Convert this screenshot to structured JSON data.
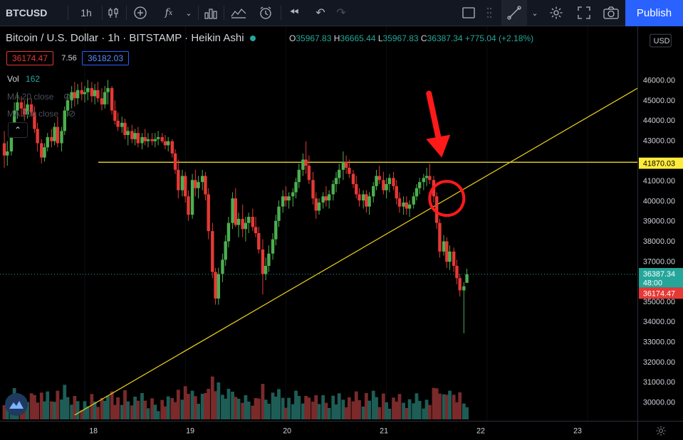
{
  "toolbar": {
    "symbol": "BTCUSD",
    "interval": "1h",
    "publish_label": "Publish"
  },
  "legend": {
    "title": "Bitcoin / U.S. Dollar · 1h · BITSTAMP · Heikin Ashi",
    "o_label": "O",
    "o": "35967.83",
    "h_label": "H",
    "h": "36665.44",
    "l_label": "L",
    "l": "35967.83",
    "c_label": "C",
    "c": "36387.34",
    "change": "+775.04 (+2.18%)",
    "bid": "36174.47",
    "spread": "7.56",
    "ask": "36182.03"
  },
  "indicators": {
    "vol_label": "Vol",
    "vol_value": "162",
    "ma1": "MA 20 close",
    "ma2": "MA 200 close"
  },
  "price_axis": {
    "currency": "USD",
    "ticks": [
      "46000.00",
      "45000.00",
      "44000.00",
      "43000.00",
      "42000.00",
      "41000.00",
      "40000.00",
      "39000.00",
      "38000.00",
      "37000.00",
      "36000.00",
      "35000.00",
      "34000.00",
      "33000.00",
      "32000.00",
      "31000.00",
      "30000.00"
    ],
    "hline_label": "41870.03",
    "last_price_label": "36387.34",
    "countdown": "48:00",
    "bid_label": "36174.47"
  },
  "time_axis": {
    "ticks": [
      "18",
      "19",
      "20",
      "21",
      "22",
      "23"
    ]
  },
  "colors": {
    "up": "#4caf50",
    "down": "#e53935",
    "vol_up": "#1e5d56",
    "vol_down": "#7a2a2a",
    "hline": "#ffeb3b",
    "trendline": "#f0d21a",
    "annotation": "#ff1a1a",
    "accent": "#2962ff"
  },
  "chart_data": {
    "type": "candlestick",
    "chart_style": "Heikin Ashi",
    "x_axis": "day of month",
    "x_ticks": [
      18,
      19,
      20,
      21,
      22,
      23
    ],
    "ylim": [
      29500,
      46500
    ],
    "horizontal_line": 41870.03,
    "trendline": [
      [
        17.9,
        29500
      ],
      [
        23.5,
        45500
      ]
    ],
    "circle_annotation": {
      "x": 21.6,
      "y": 40100
    },
    "arrow_annotation_points_to": {
      "x": 21.55,
      "y": 42100
    },
    "candles": [
      [
        17.2,
        42800,
        43400,
        41600,
        42200
      ],
      [
        17.23,
        42200,
        42900,
        41700,
        42400
      ],
      [
        17.27,
        42400,
        43800,
        42200,
        43500
      ],
      [
        17.3,
        43500,
        44800,
        43300,
        44400
      ],
      [
        17.33,
        44400,
        45300,
        44000,
        44800
      ],
      [
        17.37,
        44800,
        45100,
        44100,
        44500
      ],
      [
        17.4,
        44500,
        44900,
        43900,
        44200
      ],
      [
        17.43,
        44200,
        45000,
        44000,
        44700
      ],
      [
        17.47,
        44700,
        45000,
        44100,
        44300
      ],
      [
        17.5,
        44300,
        44600,
        43300,
        43500
      ],
      [
        17.53,
        43500,
        43800,
        42400,
        42800
      ],
      [
        17.57,
        42800,
        43000,
        41800,
        42100
      ],
      [
        17.6,
        42100,
        42800,
        41900,
        42600
      ],
      [
        17.63,
        42600,
        43300,
        42400,
        43100
      ],
      [
        17.67,
        43100,
        43500,
        42600,
        42900
      ],
      [
        17.7,
        42900,
        43800,
        42700,
        43600
      ],
      [
        17.73,
        43600,
        44100,
        42600,
        42800
      ],
      [
        17.77,
        42800,
        43600,
        42400,
        43400
      ],
      [
        17.8,
        43400,
        44600,
        43200,
        44400
      ],
      [
        17.83,
        44400,
        45200,
        44100,
        44900
      ],
      [
        17.87,
        44900,
        45600,
        44500,
        45300
      ],
      [
        17.9,
        45300,
        45800,
        44600,
        45000
      ],
      [
        17.93,
        45000,
        45700,
        44700,
        45400
      ],
      [
        17.97,
        45400,
        45800,
        44900,
        45200
      ],
      [
        18.0,
        45200,
        45600,
        44800,
        45300
      ],
      [
        18.03,
        45300,
        45900,
        44900,
        45500
      ],
      [
        18.07,
        45500,
        45800,
        44800,
        45100
      ],
      [
        18.1,
        45100,
        45700,
        44700,
        45400
      ],
      [
        18.13,
        45400,
        45800,
        44800,
        45000
      ],
      [
        18.17,
        45000,
        45500,
        44400,
        44700
      ],
      [
        18.2,
        44700,
        45600,
        44500,
        45300
      ],
      [
        18.23,
        45300,
        45900,
        44700,
        45500
      ],
      [
        18.27,
        45500,
        45600,
        44200,
        44400
      ],
      [
        18.3,
        44400,
        44900,
        43700,
        43900
      ],
      [
        18.33,
        43900,
        44300,
        43400,
        43600
      ],
      [
        18.37,
        43600,
        44100,
        43300,
        43800
      ],
      [
        18.4,
        43800,
        44000,
        43000,
        43200
      ],
      [
        18.43,
        43200,
        43600,
        42700,
        43400
      ],
      [
        18.47,
        43400,
        43700,
        42800,
        43000
      ],
      [
        18.5,
        43000,
        43500,
        42700,
        43300
      ],
      [
        18.53,
        43300,
        43600,
        42600,
        42800
      ],
      [
        18.57,
        42800,
        43300,
        42500,
        43100
      ],
      [
        18.6,
        43100,
        43500,
        42700,
        42900
      ],
      [
        18.63,
        42900,
        43300,
        42600,
        43000
      ],
      [
        18.67,
        43000,
        43300,
        42700,
        42900
      ],
      [
        18.7,
        42900,
        43300,
        42600,
        43000
      ],
      [
        18.73,
        43000,
        43400,
        42700,
        43100
      ],
      [
        18.77,
        43100,
        43300,
        42800,
        42900
      ],
      [
        18.8,
        42900,
        43200,
        42500,
        42700
      ],
      [
        18.83,
        42700,
        43100,
        42400,
        42900
      ],
      [
        18.87,
        42900,
        43000,
        42100,
        42300
      ],
      [
        18.9,
        42300,
        42500,
        41300,
        41500
      ],
      [
        18.93,
        41500,
        42000,
        40100,
        40500
      ],
      [
        18.97,
        40500,
        41500,
        40200,
        41200
      ],
      [
        19.0,
        41200,
        41400,
        39900,
        40200
      ],
      [
        19.03,
        40200,
        40500,
        39000,
        39300
      ],
      [
        19.07,
        39300,
        41300,
        39100,
        41000
      ],
      [
        19.1,
        41000,
        41500,
        40200,
        40600
      ],
      [
        19.13,
        40600,
        41200,
        40100,
        40900
      ],
      [
        19.17,
        40900,
        41500,
        40500,
        41200
      ],
      [
        19.2,
        41200,
        41400,
        40000,
        40300
      ],
      [
        19.23,
        40300,
        40600,
        38100,
        38500
      ],
      [
        19.27,
        38500,
        38900,
        36200,
        36500
      ],
      [
        19.3,
        36500,
        36700,
        34900,
        35200
      ],
      [
        19.33,
        35200,
        36700,
        34900,
        36400
      ],
      [
        19.37,
        36400,
        37400,
        36000,
        37100
      ],
      [
        19.4,
        37100,
        38300,
        36800,
        38000
      ],
      [
        19.43,
        38000,
        39200,
        37700,
        38900
      ],
      [
        19.47,
        38900,
        40400,
        38600,
        40100
      ],
      [
        19.5,
        40100,
        40600,
        38700,
        38800
      ],
      [
        19.53,
        38800,
        39400,
        38200,
        39100
      ],
      [
        19.57,
        39100,
        39800,
        38200,
        38600
      ],
      [
        19.6,
        38600,
        39200,
        38000,
        38900
      ],
      [
        19.63,
        38900,
        39400,
        38400,
        39200
      ],
      [
        19.67,
        39200,
        39600,
        38500,
        38700
      ],
      [
        19.7,
        38700,
        39200,
        38200,
        38400
      ],
      [
        19.73,
        38400,
        38700,
        37400,
        37600
      ],
      [
        19.77,
        37600,
        38100,
        35400,
        36400
      ],
      [
        19.8,
        36400,
        37200,
        36100,
        36800
      ],
      [
        19.83,
        36800,
        37800,
        36500,
        37400
      ],
      [
        19.87,
        37400,
        38400,
        37100,
        38100
      ],
      [
        19.9,
        38100,
        39300,
        37800,
        39000
      ],
      [
        19.93,
        39000,
        40000,
        38700,
        39700
      ],
      [
        19.97,
        39700,
        40500,
        39400,
        40200
      ],
      [
        20.0,
        40200,
        40700,
        39700,
        40000
      ],
      [
        20.03,
        40000,
        40400,
        39600,
        40200
      ],
      [
        20.07,
        40200,
        40600,
        39700,
        40400
      ],
      [
        20.1,
        40400,
        41100,
        40100,
        40900
      ],
      [
        20.13,
        40900,
        41800,
        40600,
        41500
      ],
      [
        20.17,
        41500,
        42300,
        41200,
        42000
      ],
      [
        20.2,
        42000,
        42900,
        41300,
        41700
      ],
      [
        20.23,
        41700,
        42200,
        40800,
        41000
      ],
      [
        20.27,
        41000,
        41400,
        39800,
        40100
      ],
      [
        20.3,
        40100,
        40400,
        39100,
        39500
      ],
      [
        20.33,
        39500,
        40100,
        39300,
        39900
      ],
      [
        20.37,
        39900,
        40400,
        39600,
        40200
      ],
      [
        20.4,
        40200,
        40700,
        39700,
        40000
      ],
      [
        20.43,
        40000,
        40500,
        39600,
        40300
      ],
      [
        20.47,
        40300,
        41000,
        40000,
        40800
      ],
      [
        20.5,
        40800,
        41400,
        40400,
        41100
      ],
      [
        20.53,
        41100,
        41800,
        40800,
        41500
      ],
      [
        20.57,
        41500,
        42400,
        41000,
        41900
      ],
      [
        20.6,
        41900,
        42200,
        41300,
        41600
      ],
      [
        20.63,
        41600,
        42000,
        41100,
        41300
      ],
      [
        20.67,
        41300,
        41500,
        40600,
        40800
      ],
      [
        20.7,
        40800,
        41200,
        40100,
        40300
      ],
      [
        20.73,
        40300,
        40600,
        39700,
        40000
      ],
      [
        20.77,
        40000,
        40500,
        39600,
        40300
      ],
      [
        20.8,
        40300,
        40500,
        39400,
        39700
      ],
      [
        20.83,
        39700,
        40400,
        39300,
        40200
      ],
      [
        20.87,
        40200,
        40900,
        39900,
        40700
      ],
      [
        20.9,
        40700,
        41500,
        40500,
        41200
      ],
      [
        20.93,
        41200,
        41700,
        40800,
        41000
      ],
      [
        20.97,
        41000,
        41400,
        40300,
        40500
      ],
      [
        21.0,
        40500,
        41100,
        40100,
        40800
      ],
      [
        21.03,
        40800,
        41300,
        40400,
        41100
      ],
      [
        21.07,
        41100,
        41400,
        40500,
        40700
      ],
      [
        21.1,
        40700,
        41000,
        39800,
        40100
      ],
      [
        21.13,
        40100,
        40400,
        39400,
        39700
      ],
      [
        21.17,
        39700,
        40200,
        39300,
        39900
      ],
      [
        21.2,
        39900,
        40200,
        39300,
        39600
      ],
      [
        21.23,
        39600,
        40000,
        39200,
        39800
      ],
      [
        21.27,
        39800,
        40400,
        39600,
        40200
      ],
      [
        21.3,
        40200,
        40800,
        40000,
        40600
      ],
      [
        21.33,
        40600,
        41100,
        40300,
        40900
      ],
      [
        21.37,
        40900,
        41300,
        40500,
        41100
      ],
      [
        21.4,
        41100,
        41600,
        40700,
        41200
      ],
      [
        21.43,
        41200,
        41800,
        40800,
        41000
      ],
      [
        21.47,
        41000,
        41200,
        39900,
        40200
      ],
      [
        21.5,
        40200,
        40400,
        38600,
        38900
      ],
      [
        21.53,
        38900,
        39100,
        37200,
        37500
      ],
      [
        21.57,
        37500,
        38300,
        37300,
        38000
      ],
      [
        21.6,
        38000,
        38200,
        36700,
        37000
      ],
      [
        21.63,
        37000,
        37800,
        36600,
        37500
      ],
      [
        21.67,
        37500,
        37700,
        36500,
        36800
      ],
      [
        21.7,
        36800,
        37100,
        35900,
        36200
      ],
      [
        21.73,
        36200,
        36400,
        35300,
        35600
      ],
      [
        21.77,
        35600,
        36000,
        33500,
        35800
      ],
      [
        21.8,
        35968,
        36665,
        35968,
        36387
      ]
    ],
    "volume_up_fraction": 0.45
  }
}
